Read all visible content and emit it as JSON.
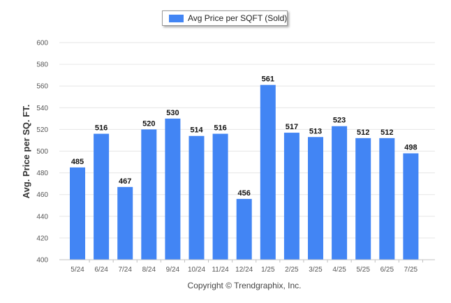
{
  "chart_data": {
    "type": "bar",
    "categories": [
      "5/24",
      "6/24",
      "7/24",
      "8/24",
      "9/24",
      "10/24",
      "11/24",
      "12/24",
      "1/25",
      "2/25",
      "3/25",
      "4/25",
      "5/25",
      "6/25",
      "7/25"
    ],
    "series": [
      {
        "name": "Avg Price per SQFT (Sold)",
        "values": [
          485,
          516,
          467,
          520,
          530,
          514,
          516,
          456,
          561,
          517,
          513,
          523,
          512,
          512,
          498
        ],
        "color": "#4285f4"
      }
    ],
    "ylabel": "Avg. Price per SQ. FT.",
    "xlabel": "",
    "ylim": [
      400,
      600
    ],
    "yticks": [
      400,
      420,
      440,
      460,
      480,
      500,
      520,
      540,
      560,
      580,
      600
    ],
    "grid": true,
    "legend_position": "top-center",
    "show_data_labels": true
  },
  "footer": {
    "copyright": "Copyright © Trendgraphix, Inc."
  },
  "legend": {
    "label": "Avg Price per SQFT (Sold)",
    "color": "#4285f4"
  },
  "colors": {
    "bar": "#4285f4",
    "grid": "#e6e6e6"
  }
}
